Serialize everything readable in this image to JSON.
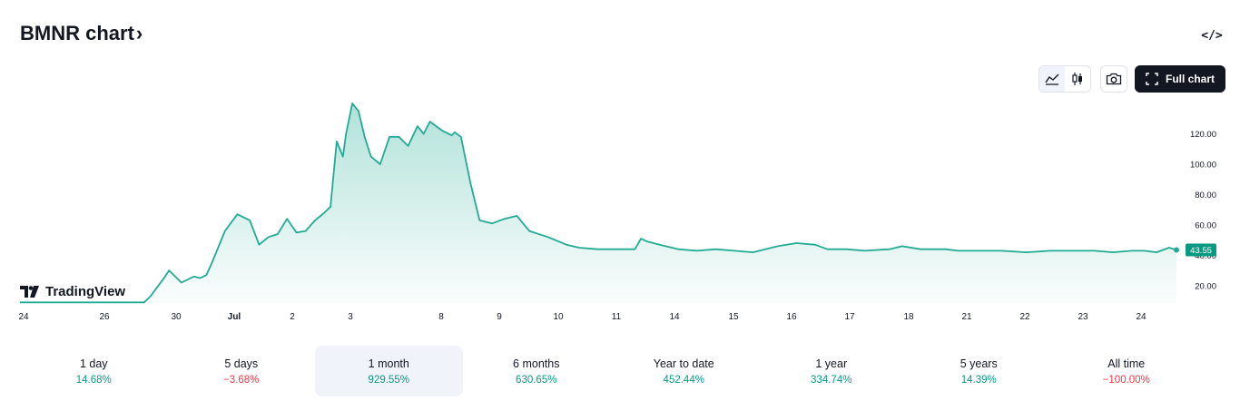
{
  "header": {
    "title": "BMNR chart",
    "title_chevron": "›",
    "embed_icon": "code-icon"
  },
  "toolbar": {
    "line_chart_icon": "area-chart-icon",
    "candles_icon": "candlestick-icon",
    "snapshot_icon": "camera-icon",
    "full_chart_label": "Full chart",
    "full_chart_icon": "fullscreen-icon"
  },
  "branding": {
    "logo_text": "TradingView"
  },
  "colors": {
    "line": "#22ab94",
    "area_top": "#22ab94",
    "price_badge": "#089981",
    "positive": "#089981",
    "negative": "#f23645"
  },
  "chart_data": {
    "type": "area",
    "title": "",
    "ylim": [
      5,
      140
    ],
    "y_ticks": [
      20,
      40,
      60,
      80,
      100,
      120
    ],
    "y_tick_labels": [
      "20.00",
      "40.00",
      "60.00",
      "80.00",
      "100.00",
      "120.00"
    ],
    "x_tick_labels": [
      "24",
      "26",
      "30",
      "Jul",
      "2",
      "3",
      "8",
      "9",
      "10",
      "11",
      "14",
      "15",
      "16",
      "17",
      "18",
      "21",
      "22",
      "23",
      "24"
    ],
    "x_tick_index": [
      0,
      1,
      2,
      3,
      4,
      5,
      6,
      7,
      8,
      9,
      10,
      11,
      12,
      13,
      14,
      15,
      16,
      17,
      18
    ],
    "last_price_label": "43.55",
    "last_price": 43.55,
    "grid": false,
    "series": [
      {
        "x": [
          0,
          0.5,
          1,
          1.3,
          2,
          2.1,
          2.3,
          2.4,
          2.6,
          2.8,
          2.9,
          3.0,
          3.1,
          3.3,
          3.5,
          3.7,
          3.85,
          4.0,
          4.15,
          4.3,
          4.45,
          4.6,
          4.75,
          4.9,
          5.0,
          5.1,
          5.2,
          5.25,
          5.35,
          5.45,
          5.55,
          5.65,
          5.8,
          5.95,
          6.1,
          6.25,
          6.4,
          6.5,
          6.6,
          6.8,
          6.95,
          7.0,
          7.1,
          7.25,
          7.4,
          7.6,
          7.8,
          8.0,
          8.2,
          8.5,
          8.8,
          9.0,
          9.3,
          9.6,
          9.9,
          10.0,
          10.1,
          10.3,
          10.6,
          10.9,
          11.2,
          11.5,
          11.8,
          12.0,
          12.2,
          12.5,
          12.8,
          13.0,
          13.3,
          13.6,
          14.0,
          14.2,
          14.5,
          14.9,
          15.1,
          15.4,
          15.8,
          16.2,
          16.6,
          17.0,
          17.3,
          17.6,
          17.9,
          18.1,
          18.3,
          18.5,
          18.62
        ],
        "y": [
          9,
          9,
          9,
          9,
          9,
          13,
          24,
          30,
          22,
          26,
          25,
          27,
          36,
          56,
          67,
          63,
          47,
          52,
          54,
          64,
          55,
          56,
          63,
          68,
          72,
          115,
          105,
          120,
          140,
          135,
          118,
          105,
          100,
          118,
          118,
          112,
          125,
          120,
          128,
          122,
          119,
          121,
          118,
          88,
          63,
          61,
          64,
          66,
          56,
          52,
          47,
          45,
          44,
          44,
          44,
          51,
          49,
          47,
          44,
          43,
          44,
          43,
          42,
          44,
          46,
          48,
          47,
          44,
          44,
          43,
          44,
          46,
          44,
          44,
          43,
          43,
          43,
          42,
          43,
          43,
          43,
          42,
          43,
          43,
          42,
          45,
          43.55
        ]
      }
    ]
  },
  "periods": [
    {
      "label": "1 day",
      "value": "14.68%",
      "sign": "pos",
      "active": false
    },
    {
      "label": "5 days",
      "value": "−3.68%",
      "sign": "neg",
      "active": false
    },
    {
      "label": "1 month",
      "value": "929.55%",
      "sign": "pos",
      "active": true
    },
    {
      "label": "6 months",
      "value": "630.65%",
      "sign": "pos",
      "active": false
    },
    {
      "label": "Year to date",
      "value": "452.44%",
      "sign": "pos",
      "active": false
    },
    {
      "label": "1 year",
      "value": "334.74%",
      "sign": "pos",
      "active": false
    },
    {
      "label": "5 years",
      "value": "14.39%",
      "sign": "pos",
      "active": false
    },
    {
      "label": "All time",
      "value": "−100.00%",
      "sign": "neg",
      "active": false
    }
  ]
}
